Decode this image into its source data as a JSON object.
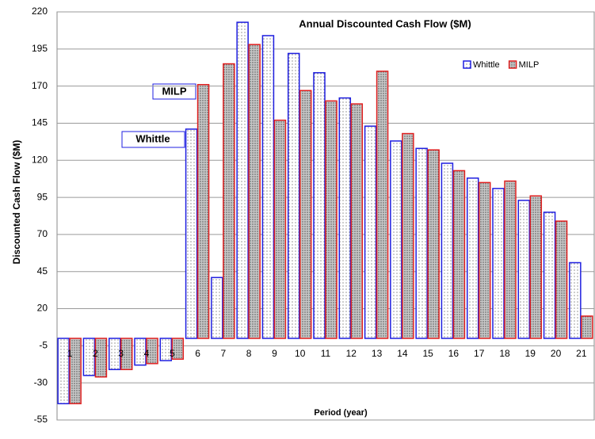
{
  "chart_data": {
    "type": "bar",
    "title": "Annual Discounted Cash Flow ($M)",
    "x_label": "Period (year)",
    "y_label": "Discounted Cash Flow ($M)",
    "categories": [
      "1",
      "2",
      "3",
      "4",
      "5",
      "6",
      "7",
      "8",
      "9",
      "10",
      "11",
      "12",
      "13",
      "14",
      "15",
      "16",
      "17",
      "18",
      "19",
      "20",
      "21"
    ],
    "series": [
      {
        "name": "Whittle",
        "color": "#1f1fe0",
        "values": [
          -44,
          -25,
          -21,
          -18,
          -15,
          141,
          41,
          213,
          204,
          192,
          179,
          162,
          143,
          133,
          128,
          118,
          108,
          101,
          93,
          85,
          51
        ]
      },
      {
        "name": "MILP",
        "color": "#e02020",
        "values": [
          -44,
          -26,
          -21,
          -17,
          -14,
          171,
          185,
          198,
          147,
          167,
          160,
          158,
          180,
          138,
          127,
          113,
          105,
          106,
          96,
          79,
          15
        ]
      }
    ],
    "annotations": [
      "MILP",
      "Whittle"
    ],
    "ylim": [
      -55,
      220
    ],
    "yticks": [
      -55,
      -30,
      -5,
      20,
      45,
      70,
      95,
      120,
      145,
      170,
      195,
      220
    ],
    "grid": true,
    "legend": "top-right"
  }
}
